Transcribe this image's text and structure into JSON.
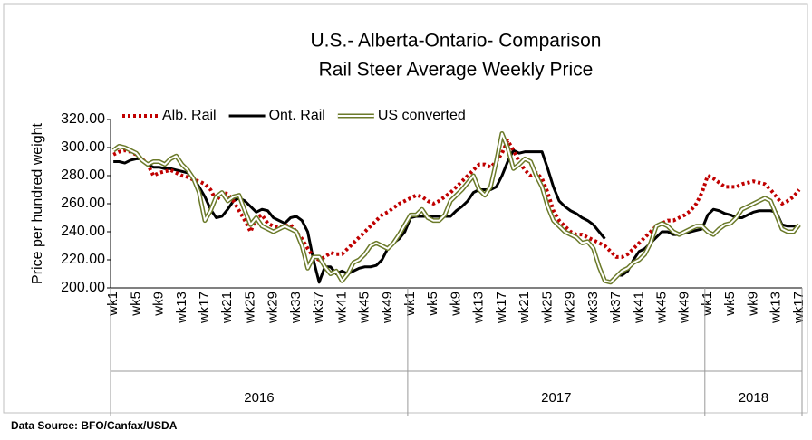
{
  "chart_data": {
    "type": "line",
    "title": "U.S.- Alberta-Ontario- Comparison",
    "subtitle": "Rail Steer Average Weekly  Price",
    "y_label": "Price per hundred weight",
    "source": "Data Source: BFO/Canfax/USDA",
    "legend": "top",
    "grid": false,
    "ylim": [
      200,
      320
    ],
    "yticks": [
      {
        "value": 200,
        "label": "200.00"
      },
      {
        "value": 220,
        "label": "220.00"
      },
      {
        "value": 240,
        "label": "240.00"
      },
      {
        "value": 260,
        "label": "260.00"
      },
      {
        "value": 280,
        "label": "280.00"
      },
      {
        "value": 300,
        "label": "300.00"
      },
      {
        "value": 320,
        "label": "320.00"
      }
    ],
    "groups": [
      "2016",
      "2017",
      "2018"
    ],
    "categories": [
      "wk1",
      null,
      null,
      null,
      "wk5",
      null,
      null,
      null,
      "wk9",
      null,
      null,
      null,
      "wk13",
      null,
      null,
      null,
      "wk17",
      null,
      null,
      null,
      "wk21",
      null,
      null,
      null,
      "wk25",
      null,
      null,
      null,
      "wk29",
      null,
      null,
      null,
      "wk33",
      null,
      null,
      null,
      "wk37",
      null,
      null,
      null,
      "wk41",
      null,
      null,
      null,
      "wk45",
      null,
      null,
      null,
      "wk49",
      null,
      null,
      null,
      "wk1",
      null,
      null,
      null,
      "wk5",
      null,
      null,
      null,
      "wk9",
      null,
      null,
      null,
      "wk13",
      null,
      null,
      null,
      "wk17",
      null,
      null,
      null,
      "wk21",
      null,
      null,
      null,
      "wk25",
      null,
      null,
      null,
      "wk29",
      null,
      null,
      null,
      "wk33",
      null,
      null,
      null,
      "wk37",
      null,
      null,
      null,
      "wk41",
      null,
      null,
      null,
      "wk45",
      null,
      null,
      null,
      "wk49",
      null,
      null,
      null,
      "wk1",
      null,
      null,
      null,
      "wk5",
      null,
      null,
      null,
      "wk9",
      null,
      null,
      null,
      "wk13",
      null,
      null,
      null,
      "wk17"
    ],
    "series": [
      {
        "name": "Alb. Rail",
        "color": "#c00000",
        "style": "dotted",
        "values": [
          295,
          297,
          298,
          297,
          295,
          292,
          288,
          280,
          282,
          283,
          284,
          282,
          280,
          279,
          277,
          276,
          274,
          270,
          262,
          268,
          267,
          262,
          255,
          248,
          240,
          250,
          252,
          246,
          244,
          243,
          244,
          245,
          240,
          235,
          228,
          222,
          220,
          222,
          225,
          224,
          224,
          228,
          232,
          236,
          240,
          244,
          248,
          252,
          254,
          257,
          260,
          262,
          264,
          266,
          265,
          262,
          260,
          262,
          265,
          268,
          272,
          276,
          280,
          284,
          288,
          288,
          286,
          290,
          296,
          305,
          298,
          290,
          284,
          280,
          282,
          278,
          268,
          255,
          248,
          244,
          240,
          238,
          238,
          236,
          234,
          232,
          230,
          226,
          222,
          222,
          224,
          228,
          232,
          236,
          240,
          244,
          246,
          248,
          248,
          250,
          252,
          255,
          260,
          268,
          280,
          278,
          275,
          272,
          272,
          272,
          274,
          275,
          276,
          275,
          274,
          270,
          265,
          260,
          262,
          265,
          270
        ]
      },
      {
        "name": "Ont. Rail",
        "color": "#000000",
        "style": "solid",
        "values": [
          290,
          290,
          289,
          291,
          292,
          292,
          288,
          286,
          286,
          285,
          285,
          284,
          283,
          282,
          278,
          272,
          265,
          256,
          250,
          251,
          256,
          262,
          264,
          262,
          258,
          254,
          256,
          255,
          250,
          248,
          246,
          250,
          251,
          248,
          240,
          220,
          204,
          215,
          215,
          210,
          212,
          210,
          212,
          214,
          215,
          215,
          216,
          220,
          228,
          232,
          235,
          240,
          250,
          251,
          251,
          251,
          251,
          251,
          251,
          251,
          255,
          258,
          262,
          268,
          270,
          270,
          270,
          272,
          280,
          290,
          298,
          296,
          297,
          297,
          297,
          297,
          285,
          272,
          262,
          258,
          255,
          253,
          250,
          248,
          245,
          240,
          235,
          null,
          209,
          209,
          212,
          220,
          226,
          228,
          232,
          236,
          240,
          240,
          238,
          238,
          239,
          240,
          241,
          242,
          252,
          256,
          255,
          253,
          252,
          250,
          250,
          252,
          254,
          255,
          255,
          255,
          254,
          245,
          244,
          244,
          244
        ]
      },
      {
        "name": "US converted",
        "color": "#6b7a2a",
        "style": "double",
        "values": [
          298,
          301,
          300,
          298,
          296,
          291,
          288,
          290,
          290,
          288,
          292,
          294,
          288,
          284,
          278,
          268,
          248,
          255,
          265,
          268,
          262,
          265,
          266,
          255,
          245,
          250,
          244,
          242,
          240,
          242,
          244,
          242,
          240,
          230,
          214,
          222,
          222,
          215,
          210,
          212,
          205,
          210,
          218,
          220,
          224,
          230,
          232,
          230,
          228,
          232,
          238,
          245,
          252,
          252,
          256,
          250,
          248,
          248,
          252,
          262,
          266,
          270,
          275,
          280,
          270,
          266,
          272,
          290,
          310,
          300,
          285,
          288,
          292,
          290,
          280,
          272,
          258,
          248,
          244,
          240,
          238,
          236,
          232,
          233,
          228,
          215,
          205,
          204,
          208,
          212,
          214,
          218,
          220,
          224,
          232,
          244,
          246,
          244,
          240,
          238,
          240,
          242,
          244,
          244,
          240,
          238,
          242,
          245,
          246,
          250,
          256,
          258,
          260,
          262,
          264,
          262,
          252,
          242,
          240,
          240,
          245
        ]
      }
    ]
  }
}
